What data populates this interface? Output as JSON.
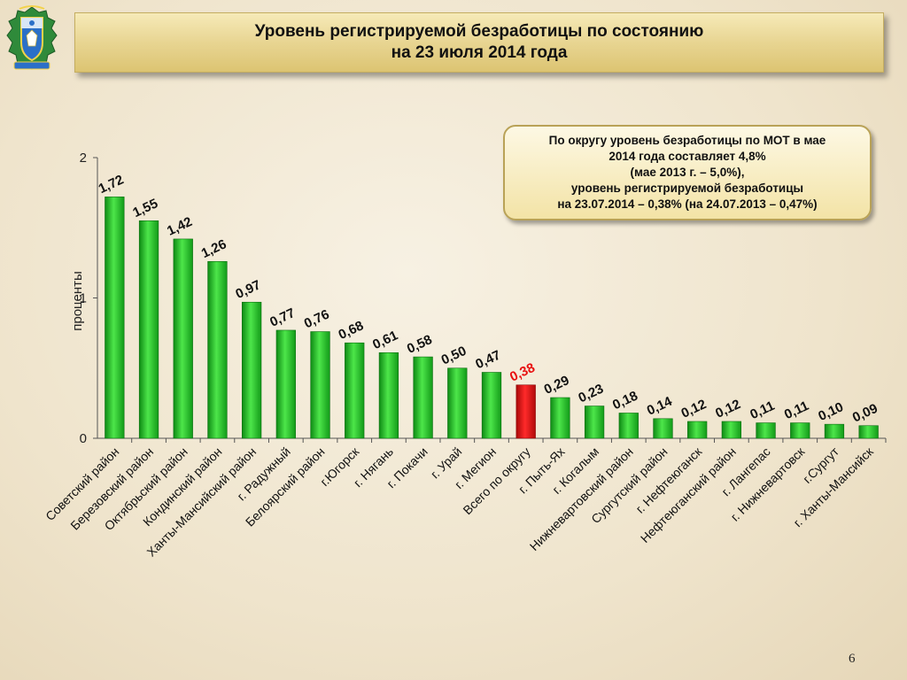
{
  "title": {
    "line1": "Уровень регистрируемой безработицы по состоянию",
    "line2": "на 23 июля 2014 года"
  },
  "note": {
    "line1": "По округу уровень безработицы по МОТ в мае",
    "line2": "2014 года составляет 4,8%",
    "line3": "(мае 2013 г. – 5,0%),",
    "line4": "уровень регистрируемой безработицы",
    "line5": "на 23.07.2014 – 0,38% (на 24.07.2013 – 0,47%)"
  },
  "page_number": "6",
  "emblem_icon": "coat-of-arms-icon",
  "colors": {
    "bar": "#2ecc2e",
    "highlight_bar": "#e81010",
    "highlight_label": "#e81010"
  },
  "chart_data": {
    "type": "bar",
    "title": "Уровень регистрируемой безработицы по состоянию на 23 июля 2014 года",
    "xlabel": "",
    "ylabel": "проценты",
    "ylim": [
      0,
      2
    ],
    "yticks": [
      "0",
      "1",
      "2"
    ],
    "grid": false,
    "legend": "none",
    "categories": [
      "Советский район",
      "Березовский район",
      "Октябрьский район",
      "Кондинский район",
      "Ханты-Мансийский район",
      "г. Радужный",
      "Белоярский район",
      "г.Югорск",
      "г. Нягань",
      "г. Покачи",
      "г. Урай",
      "г. Мегион",
      "Всего по округу",
      "г. Пыть-Ях",
      "г. Когалым",
      "Нижневартовский район",
      "Сургутский район",
      "г. Нефтеюганск",
      "Нефтеюганский район",
      "г. Лангепас",
      "г. Нижневартовск",
      "г.Сургут",
      "г. Ханты-Мансийск"
    ],
    "values": [
      1.72,
      1.55,
      1.42,
      1.26,
      0.97,
      0.77,
      0.76,
      0.68,
      0.61,
      0.58,
      0.5,
      0.47,
      0.38,
      0.29,
      0.23,
      0.18,
      0.14,
      0.12,
      0.12,
      0.11,
      0.11,
      0.1,
      0.09
    ],
    "value_labels": [
      "1,72",
      "1,55",
      "1,42",
      "1,26",
      "0,97",
      "0,77",
      "0,76",
      "0,68",
      "0,61",
      "0,58",
      "0,50",
      "0,47",
      "0,38",
      "0,29",
      "0,23",
      "0,18",
      "0,14",
      "0,12",
      "0,12",
      "0,11",
      "0,11",
      "0,10",
      "0,09"
    ],
    "highlight_category": "Всего по округу"
  }
}
